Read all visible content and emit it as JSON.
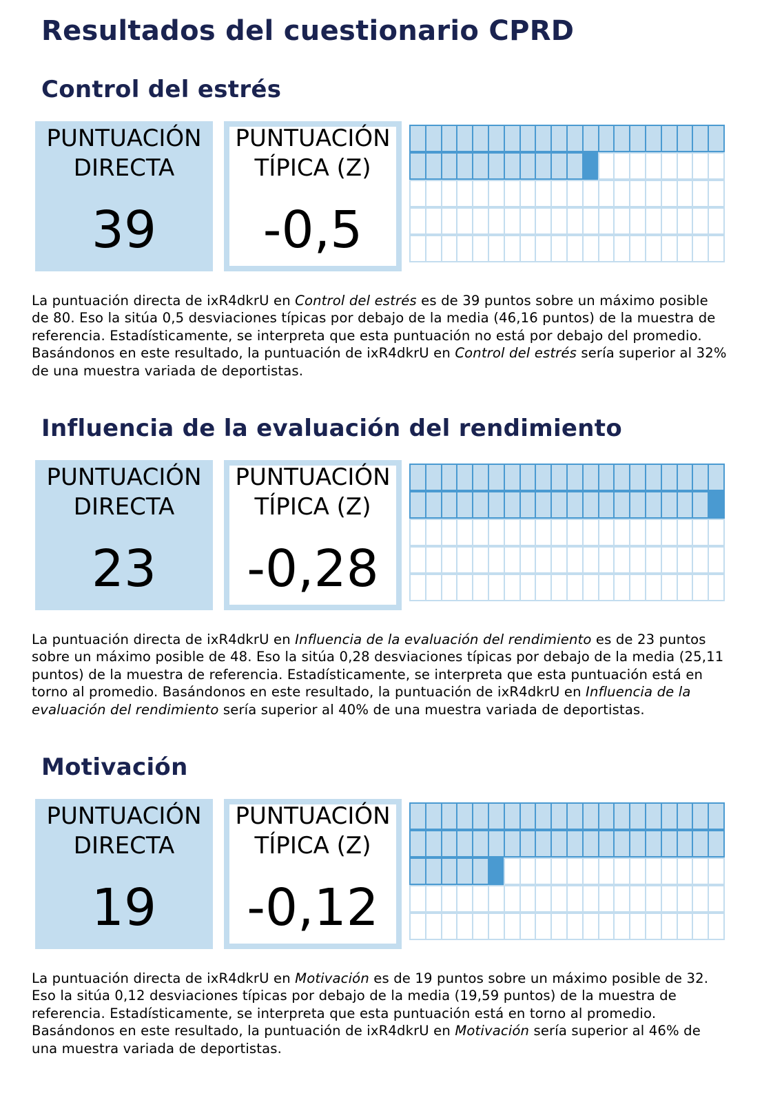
{
  "title": "Resultados del cuestionario CPRD",
  "labels": {
    "direct": "PUNTUACIÓN\nDIRECTA",
    "typical": "PUNTUACIÓN\nTÍPICA (Z)"
  },
  "sections": [
    {
      "title": "Control del estrés",
      "direct_score": "39",
      "z_score": "-0,5",
      "percentile": 32,
      "grid_filled_cells": 32,
      "description": [
        {
          "text": "La puntuación directa de ixR4dkrU en "
        },
        {
          "text": "Control del estrés",
          "italic": true
        },
        {
          "text": " es de 39 puntos sobre un máximo posible de 80. Eso la sitúa 0,5 desviaciones típicas por debajo de la media (46,16 puntos) de la muestra de referencia. Estadísticamente, se interpreta que esta puntuación no está por debajo del promedio. Basándonos en este resultado, la puntuación de ixR4dkrU en "
        },
        {
          "text": "Control del estrés",
          "italic": true
        },
        {
          "text": " sería superior al 32% de una muestra variada de deportistas."
        }
      ]
    },
    {
      "title": "Influencia de la evaluación del rendimiento",
      "direct_score": "23",
      "z_score": "-0,28",
      "percentile": 40,
      "grid_filled_cells": 40,
      "description": [
        {
          "text": "La puntuación directa de ixR4dkrU en "
        },
        {
          "text": "Influencia de la evaluación del rendimiento",
          "italic": true
        },
        {
          "text": " es de 23 puntos sobre un máximo posible de 48. Eso la sitúa 0,28 desviaciones típicas por debajo de la media (25,11 puntos) de la muestra de referencia. Estadísticamente, se interpreta que esta puntuación está en torno al promedio. Basándonos en este resultado, la puntuación de ixR4dkrU en "
        },
        {
          "text": "Influencia de la evaluación del rendimiento",
          "italic": true
        },
        {
          "text": " sería superior al 40% de una muestra variada de deportistas."
        }
      ]
    },
    {
      "title": "Motivación",
      "direct_score": "19",
      "z_score": "-0,12",
      "percentile": 46,
      "grid_filled_cells": 46,
      "description": [
        {
          "text": "La puntuación directa de ixR4dkrU en "
        },
        {
          "text": "Motivación",
          "italic": true
        },
        {
          "text": " es de 19 puntos sobre un máximo posible de 32. Eso la sitúa 0,12 desviaciones típicas por debajo de la media (19,59 puntos) de la muestra de referencia. Estadísticamente, se interpreta que esta puntuación está en torno al promedio. Basándonos en este resultado, la puntuación de ixR4dkrU en "
        },
        {
          "text": "Motivación",
          "italic": true
        },
        {
          "text": " sería superior al 46% de una muestra variada de deportistas."
        }
      ]
    }
  ],
  "colors": {
    "title": "#1a2350",
    "box_fill": "#c3ddef",
    "grid_border": "#4a9ad1",
    "grid_mark": "#4a9ad1"
  }
}
